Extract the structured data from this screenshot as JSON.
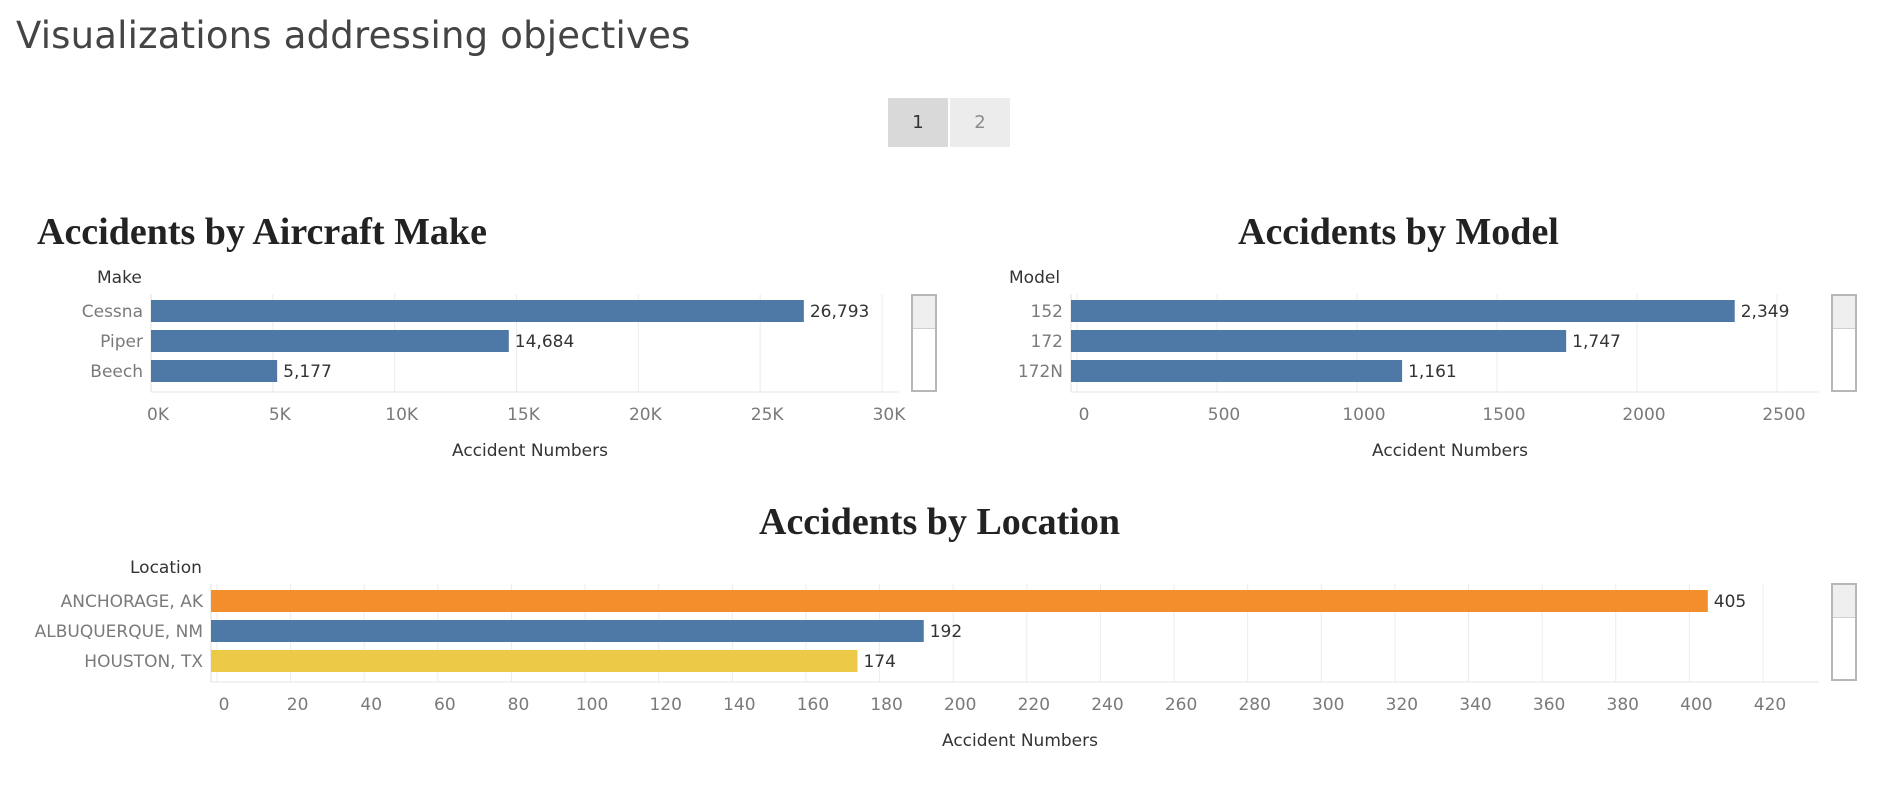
{
  "page": {
    "title": "Visualizations addressing objectives",
    "pages": [
      "1",
      "2"
    ],
    "active_page": "1"
  },
  "chart_data": [
    {
      "type": "bar",
      "orientation": "horizontal",
      "title": "Accidents by Aircraft Make",
      "dimension_label": "Make",
      "categories": [
        "Cessna",
        "Piper",
        "Beech"
      ],
      "values": [
        26793,
        14684,
        5177
      ],
      "value_labels": [
        "26,793",
        "14,684",
        "5,177"
      ],
      "xlabel": "Accident Numbers",
      "xlim": [
        0,
        31000
      ],
      "ticks": [
        0,
        5000,
        10000,
        15000,
        20000,
        25000,
        30000
      ],
      "tick_labels": [
        "0K",
        "5K",
        "10K",
        "15K",
        "20K",
        "25K",
        "30K"
      ],
      "bar_colors": [
        "#4e79a7",
        "#4e79a7",
        "#4e79a7"
      ],
      "grid": true
    },
    {
      "type": "bar",
      "orientation": "horizontal",
      "title": "Accidents by Model",
      "dimension_label": "Model",
      "categories": [
        "152",
        "172",
        "172N"
      ],
      "values": [
        2349,
        1747,
        1161
      ],
      "value_labels": [
        "2,349",
        "1,747",
        "1,161"
      ],
      "xlabel": "Accident Numbers",
      "xlim": [
        0,
        2700
      ],
      "ticks": [
        0,
        500,
        1000,
        1500,
        2000,
        2500
      ],
      "tick_labels": [
        "0",
        "500",
        "1000",
        "1500",
        "2000",
        "2500"
      ],
      "bar_colors": [
        "#4e79a7",
        "#4e79a7",
        "#4e79a7"
      ],
      "grid": true
    },
    {
      "type": "bar",
      "orientation": "horizontal",
      "title": "Accidents by Location",
      "dimension_label": "Location",
      "categories": [
        "ANCHORAGE, AK",
        "ALBUQUERQUE, NM",
        "HOUSTON, TX"
      ],
      "values": [
        405,
        192,
        174
      ],
      "value_labels": [
        "405",
        "192",
        "174"
      ],
      "xlabel": "Accident Numbers",
      "xlim": [
        0,
        440
      ],
      "ticks": [
        0,
        20,
        40,
        60,
        80,
        100,
        120,
        140,
        160,
        180,
        200,
        220,
        240,
        260,
        280,
        300,
        320,
        340,
        360,
        380,
        400,
        420
      ],
      "tick_labels": [
        "0",
        "20",
        "40",
        "60",
        "80",
        "100",
        "120",
        "140",
        "160",
        "180",
        "200",
        "220",
        "240",
        "260",
        "280",
        "300",
        "320",
        "340",
        "360",
        "380",
        "400",
        "420"
      ],
      "bar_colors": [
        "#f28e2b",
        "#4e79a7",
        "#edc948"
      ],
      "grid": true
    }
  ]
}
